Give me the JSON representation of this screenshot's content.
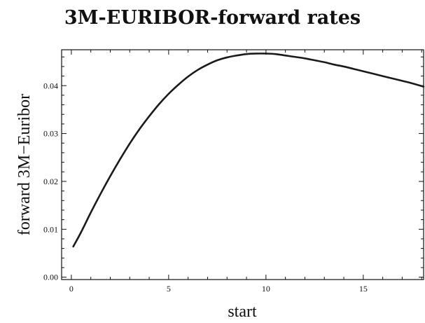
{
  "chart_data": {
    "type": "line",
    "title": "3M-EURIBOR-forward rates",
    "xlabel": "start",
    "ylabel": "forward 3M−Euribor",
    "xlim": [
      -0.5,
      18.1
    ],
    "ylim": [
      -0.0005,
      0.0475
    ],
    "xticks": [
      0,
      5,
      10,
      15
    ],
    "yticks": [
      0.0,
      0.01,
      0.02,
      0.03,
      0.04
    ],
    "ytick_labels": [
      "0.00",
      "0.01",
      "0.02",
      "0.03",
      "0.04"
    ],
    "grid": false,
    "series": [
      {
        "color": "#1a1a1a",
        "x": [
          0.1,
          0.5,
          1,
          1.5,
          2,
          2.5,
          3,
          3.5,
          4,
          4.5,
          5,
          5.5,
          6,
          6.5,
          7,
          7.5,
          8,
          8.5,
          9,
          9.5,
          10,
          10.5,
          11,
          11.5,
          12,
          12.5,
          13,
          13.5,
          14,
          14.5,
          15,
          15.5,
          16,
          16.5,
          17,
          17.5,
          18.1
        ],
        "y": [
          0.0064,
          0.0094,
          0.0135,
          0.0174,
          0.0211,
          0.0246,
          0.0279,
          0.0309,
          0.0336,
          0.0361,
          0.0383,
          0.0402,
          0.0419,
          0.0433,
          0.0444,
          0.0453,
          0.0459,
          0.0463,
          0.0466,
          0.0467,
          0.0467,
          0.0466,
          0.0463,
          0.046,
          0.0457,
          0.0453,
          0.0449,
          0.0444,
          0.044,
          0.0435,
          0.043,
          0.0425,
          0.042,
          0.0415,
          0.041,
          0.0405,
          0.0398
        ]
      }
    ]
  }
}
